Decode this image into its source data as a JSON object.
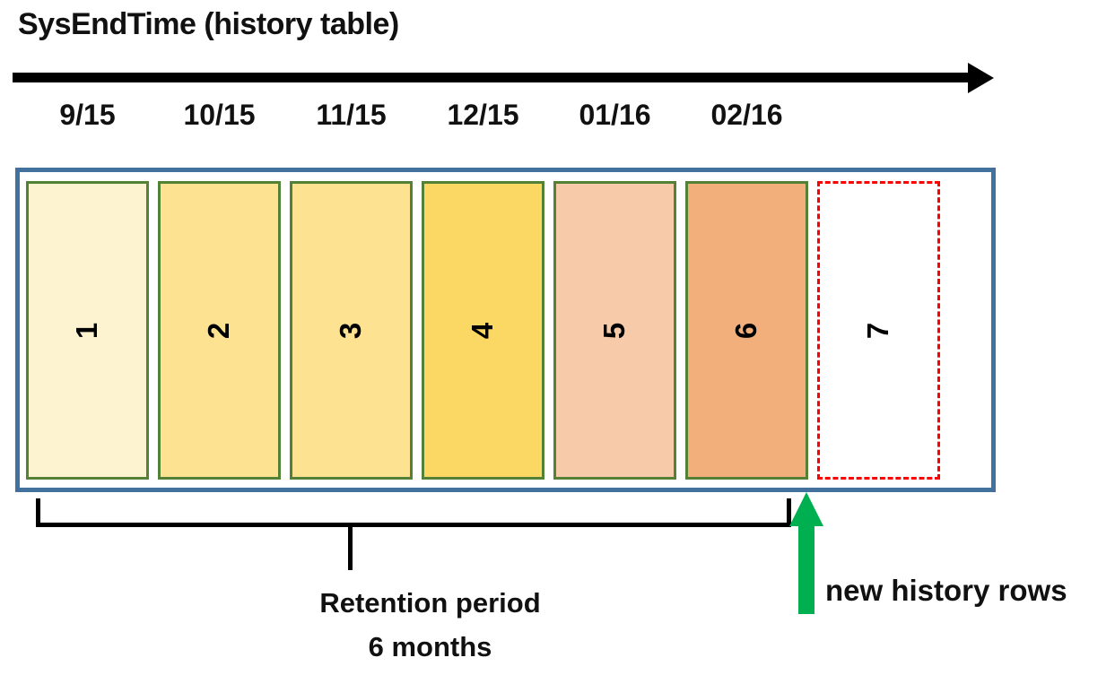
{
  "title": "SysEndTime (history table)",
  "timeline": {
    "dates": [
      "9/15",
      "10/15",
      "11/15",
      "12/15",
      "01/16",
      "02/16"
    ]
  },
  "history_table": {
    "partitions": [
      {
        "label": "1",
        "fill": "#FDF3D0",
        "state": "retained"
      },
      {
        "label": "2",
        "fill": "#FCE291",
        "state": "retained"
      },
      {
        "label": "3",
        "fill": "#FCE291",
        "state": "retained"
      },
      {
        "label": "4",
        "fill": "#FBD763",
        "state": "retained"
      },
      {
        "label": "5",
        "fill": "#F7CBA9",
        "state": "retained"
      },
      {
        "label": "6",
        "fill": "#F2AE7B",
        "state": "retained"
      },
      {
        "label": "7",
        "fill": "#FFFFFF",
        "state": "new"
      }
    ]
  },
  "annotations": {
    "retention_line1": "Retention period",
    "retention_line2": "6 months",
    "new_rows_label": "new history rows"
  },
  "colors": {
    "container_border": "#41719C",
    "partition_border": "#538135",
    "new_partition_border": "#FF0000",
    "timeline_arrow": "#000000",
    "new_rows_arrow": "#00B050"
  }
}
